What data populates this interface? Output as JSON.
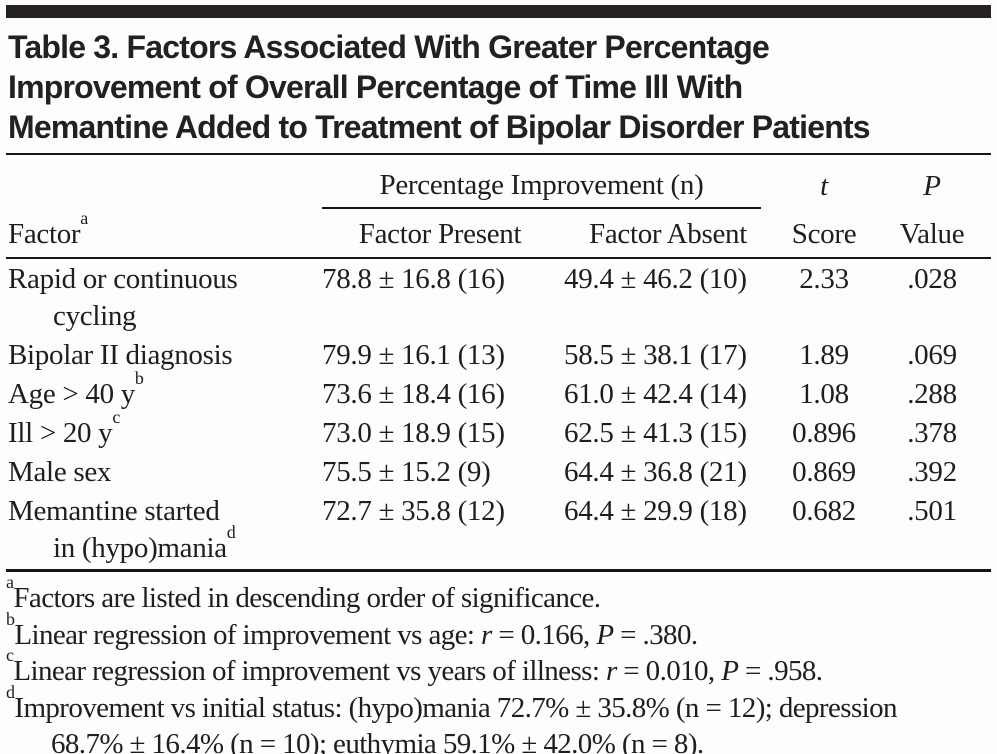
{
  "table": {
    "title_lines": [
      "Table 3. Factors Associated With Greater Percentage",
      "Improvement of Overall Percentage of Time Ill With",
      "Memantine Added to Treatment of Bipolar Disorder Patients"
    ],
    "header": {
      "span_group": "Percentage Improvement (n)",
      "col_factor": "Factor",
      "col_factor_sup": "a",
      "col_present": "Factor Present",
      "col_absent": "Factor Absent",
      "t_top": "t",
      "t_bottom": "Score",
      "p_top": "P",
      "p_bottom": "Value"
    },
    "rows": [
      {
        "factor_line1": "Rapid or continuous",
        "sup1": "",
        "factor_line2": "cycling",
        "sup2": "",
        "present": "78.8 ± 16.8 (16)",
        "absent": "49.4 ± 46.2 (10)",
        "t": "2.33",
        "p": ".028"
      },
      {
        "factor_line1": "Bipolar II diagnosis",
        "sup1": "",
        "factor_line2": "",
        "sup2": "",
        "present": "79.9 ± 16.1 (13)",
        "absent": "58.5 ± 38.1 (17)",
        "t": "1.89",
        "p": ".069"
      },
      {
        "factor_line1": "Age > 40 y",
        "sup1": "b",
        "factor_line2": "",
        "sup2": "",
        "present": "73.6 ± 18.4 (16)",
        "absent": "61.0 ± 42.4 (14)",
        "t": "1.08",
        "p": ".288"
      },
      {
        "factor_line1": "Ill > 20 y",
        "sup1": "c",
        "factor_line2": "",
        "sup2": "",
        "present": "73.0 ± 18.9 (15)",
        "absent": "62.5 ± 41.3 (15)",
        "t": "0.896",
        "p": ".378"
      },
      {
        "factor_line1": "Male sex",
        "sup1": "",
        "factor_line2": "",
        "sup2": "",
        "present": "75.5 ± 15.2 (9)",
        "absent": "64.4 ± 36.8 (21)",
        "t": "0.869",
        "p": ".392"
      },
      {
        "factor_line1": "Memantine started",
        "sup1": "",
        "factor_line2": "in (hypo)mania",
        "sup2": "d",
        "present": "72.7 ± 35.8 (12)",
        "absent": "64.4 ± 29.9 (18)",
        "t": "0.682",
        "p": ".501"
      }
    ],
    "footnotes": [
      {
        "sup": "a",
        "parts": [
          "Factors are listed in descending order of significance.",
          "",
          "",
          "",
          ""
        ]
      },
      {
        "sup": "b",
        "parts": [
          "Linear regression of improvement vs age: ",
          "r",
          " = 0.166, ",
          "P",
          " = .380."
        ]
      },
      {
        "sup": "c",
        "parts": [
          "Linear regression of improvement vs years of illness: ",
          "r",
          " = 0.010, ",
          "P",
          " = .958."
        ]
      },
      {
        "sup": "d",
        "parts": [
          "Improvement vs initial status: (hypo)mania 72.7% ± 35.8% (n = 12); depression 68.7% ± 16.4% (n = 10); euthymia 59.1% ± 42.0% (n = 8).",
          "",
          "",
          "",
          ""
        ]
      }
    ],
    "colors": {
      "top_bar": "#262223",
      "rule": "#181514",
      "text": "#201e1d",
      "background": "#fdfdfc"
    }
  }
}
